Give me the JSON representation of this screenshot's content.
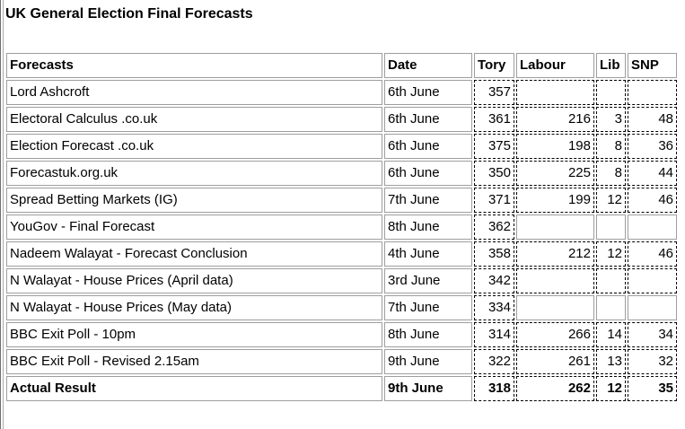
{
  "page": {
    "title": "UK General Election Final Forecasts"
  },
  "colors": {
    "background": "#ffffff",
    "text": "#000000",
    "solid_cell_border": "#9e9e9e",
    "dashed_cell_border": "#000000",
    "frame_edge_dark": "#6e6e6e",
    "frame_edge_light": "#ababab"
  },
  "table": {
    "columns": [
      {
        "key": "forecast",
        "label": "Forecasts"
      },
      {
        "key": "date",
        "label": "Date"
      },
      {
        "key": "tory",
        "label": "Tory"
      },
      {
        "key": "labour",
        "label": "Labour"
      },
      {
        "key": "lib",
        "label": "Lib"
      },
      {
        "key": "snp",
        "label": "SNP"
      }
    ],
    "rows": [
      {
        "forecast": "Lord Ashcroft",
        "date": "6th June",
        "tory": "357",
        "labour": "",
        "lib": "",
        "snp": "",
        "empty_style": "dashed",
        "bold": false
      },
      {
        "forecast": "Electoral Calculus .co.uk",
        "date": "6th June",
        "tory": "361",
        "labour": "216",
        "lib": "3",
        "snp": "48",
        "empty_style": "dashed",
        "bold": false
      },
      {
        "forecast": "Election Forecast .co.uk",
        "date": "6th June",
        "tory": "375",
        "labour": "198",
        "lib": "8",
        "snp": "36",
        "empty_style": "dashed",
        "bold": false
      },
      {
        "forecast": "Forecastuk.org.uk",
        "date": "6th June",
        "tory": "350",
        "labour": "225",
        "lib": "8",
        "snp": "44",
        "empty_style": "dashed",
        "bold": false
      },
      {
        "forecast": "Spread Betting Markets (IG)",
        "date": "7th June",
        "tory": "371",
        "labour": "199",
        "lib": "12",
        "snp": "46",
        "empty_style": "dashed",
        "bold": false
      },
      {
        "forecast": "YouGov - Final Forecast",
        "date": "8th June",
        "tory": "362",
        "labour": "",
        "lib": "",
        "snp": "",
        "empty_style": "solid",
        "bold": false
      },
      {
        "forecast": "Nadeem Walayat - Forecast Conclusion",
        "date": "4th June",
        "tory": "358",
        "labour": "212",
        "lib": "12",
        "snp": "46",
        "empty_style": "dashed",
        "bold": false
      },
      {
        "forecast": "N Walayat - House Prices (April data)",
        "date": "3rd June",
        "tory": "342",
        "labour": "",
        "lib": "",
        "snp": "",
        "empty_style": "dashed",
        "bold": false
      },
      {
        "forecast": "N Walayat - House Prices (May data)",
        "date": "7th June",
        "tory": "334",
        "labour": "",
        "lib": "",
        "snp": "",
        "empty_style": "solid",
        "bold": false
      },
      {
        "forecast": "BBC Exit Poll - 10pm",
        "date": "8th June",
        "tory": "314",
        "labour": "266",
        "lib": "14",
        "snp": "34",
        "empty_style": "dashed",
        "bold": false
      },
      {
        "forecast": "BBC Exit Poll - Revised 2.15am",
        "date": "9th June",
        "tory": "322",
        "labour": "261",
        "lib": "13",
        "snp": "32",
        "empty_style": "dashed",
        "bold": false
      },
      {
        "forecast": "Actual Result",
        "date": "9th June",
        "tory": "318",
        "labour": "262",
        "lib": "12",
        "snp": "35",
        "empty_style": "dashed",
        "bold": true
      }
    ]
  }
}
